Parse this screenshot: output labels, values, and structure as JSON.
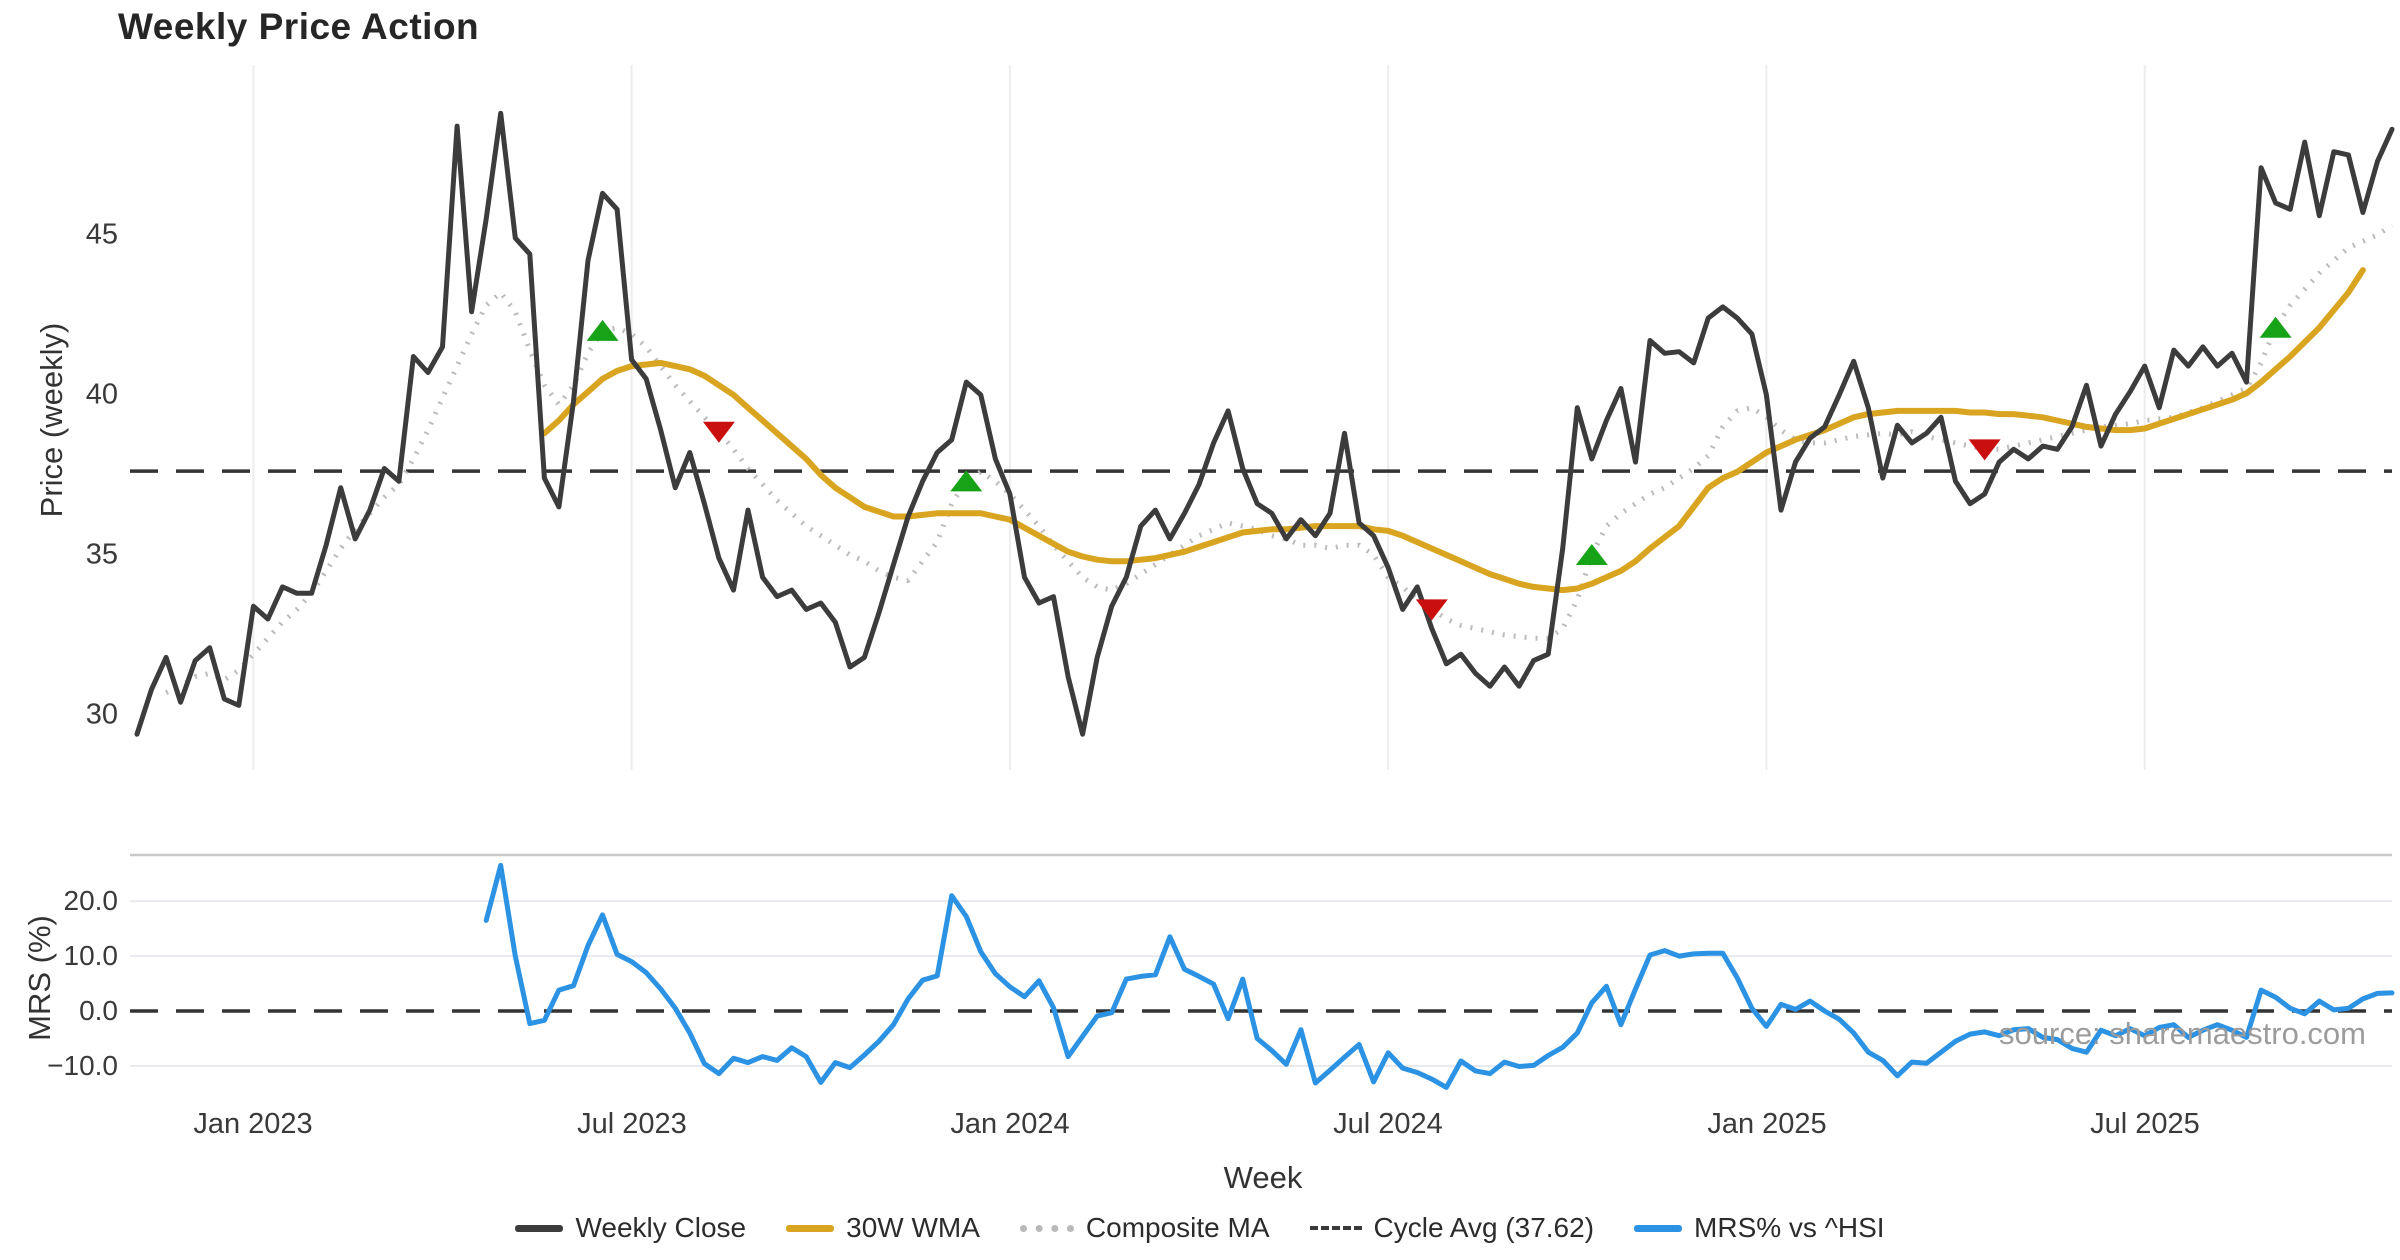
{
  "title": "Weekly Price Action",
  "watermark": "source: sharemaestro.com",
  "axes": {
    "price_axis_label": "Price (weekly)",
    "mrs_axis_label": "MRS (%)",
    "x_axis_label": "Week",
    "price_tick_labels": [
      "45",
      "40",
      "35",
      "30"
    ],
    "mrs_tick_labels": [
      "20.0",
      "10.0",
      "0.0",
      "−10.0"
    ]
  },
  "legend": {
    "items": [
      {
        "label": "Weekly Close"
      },
      {
        "label": "30W WMA"
      },
      {
        "label": "Composite MA"
      },
      {
        "label": "Cycle Avg (37.62)"
      },
      {
        "label": "MRS% vs ^HSI"
      }
    ]
  },
  "chart_data": {
    "type": "line",
    "x_unit": "weeks",
    "x_range_weeks": [
      0,
      155
    ],
    "x_ticks": [
      {
        "week": 8,
        "label": "Jan 2023"
      },
      {
        "week": 34,
        "label": "Jul 2023"
      },
      {
        "week": 60,
        "label": "Jan 2024"
      },
      {
        "week": 86,
        "label": "Jul 2024"
      },
      {
        "week": 112,
        "label": "Jan 2025"
      },
      {
        "week": 138,
        "label": "Jul 2025"
      }
    ],
    "colors": {
      "close": "#3c3c3c",
      "wma": "#d9a521",
      "composite": "#bcbcbc",
      "cycle": "#333333",
      "mrs": "#2b92e4",
      "buy": "#17a317",
      "sell": "#c9100e",
      "grid_v": "#ededed",
      "grid_mrs": "#e9e9f0",
      "mrs_top_border": "#c9c9c9"
    },
    "price_panel": {
      "ylim": [
        28.28,
        50.31
      ],
      "yticks": [
        45,
        40,
        35,
        30
      ],
      "cycle_avg": 37.62,
      "series": [
        {
          "name": "Weekly Close",
          "style": "solid",
          "start_week": 0,
          "values": [
            29.4,
            30.8,
            31.8,
            30.4,
            31.7,
            32.1,
            30.5,
            30.3,
            33.4,
            33.0,
            34.0,
            33.8,
            33.8,
            35.3,
            37.1,
            35.5,
            36.4,
            37.7,
            37.3,
            41.2,
            40.7,
            41.5,
            48.4,
            42.6,
            45.5,
            48.8,
            44.9,
            44.4,
            37.4,
            36.5,
            39.8,
            44.2,
            46.3,
            45.8,
            41.1,
            40.5,
            38.9,
            37.1,
            38.2,
            36.6,
            34.9,
            33.9,
            36.4,
            34.3,
            33.7,
            33.9,
            33.3,
            33.5,
            32.9,
            31.5,
            31.8,
            33.2,
            34.7,
            36.2,
            37.3,
            38.2,
            38.6,
            40.4,
            40.0,
            38.0,
            36.9,
            34.3,
            33.5,
            33.7,
            31.2,
            29.4,
            31.8,
            33.4,
            34.3,
            35.9,
            36.4,
            35.5,
            36.3,
            37.2,
            38.5,
            39.5,
            37.7,
            36.6,
            36.3,
            35.5,
            36.1,
            35.6,
            36.3,
            38.8,
            36.0,
            35.6,
            34.6,
            33.3,
            34.0,
            32.7,
            31.6,
            31.9,
            31.3,
            30.9,
            31.5,
            30.9,
            31.7,
            31.9,
            35.2,
            39.6,
            38.0,
            39.2,
            40.2,
            37.9,
            41.7,
            41.3,
            41.35,
            41.0,
            42.4,
            42.75,
            42.4,
            41.9,
            40.0,
            36.4,
            37.9,
            38.65,
            39.0,
            40.0,
            41.05,
            39.6,
            37.4,
            39.05,
            38.5,
            38.8,
            39.3,
            37.3,
            36.6,
            36.9,
            37.9,
            38.3,
            38.0,
            38.4,
            38.3,
            39.0,
            40.3,
            38.4,
            39.4,
            40.1,
            40.9,
            39.6,
            41.4,
            40.9,
            41.5,
            40.9,
            41.3,
            40.4,
            47.1,
            46.0,
            45.8,
            47.9,
            45.6,
            47.6,
            47.5,
            45.7,
            47.3,
            48.3
          ]
        },
        {
          "name": "30W WMA",
          "style": "solid",
          "start_week": 28,
          "values": [
            38.8,
            39.2,
            39.7,
            40.1,
            40.5,
            40.75,
            40.9,
            40.95,
            41.0,
            40.9,
            40.8,
            40.6,
            40.3,
            40.0,
            39.6,
            39.2,
            38.8,
            38.4,
            38.0,
            37.5,
            37.1,
            36.8,
            36.5,
            36.35,
            36.2,
            36.2,
            36.25,
            36.3,
            36.3,
            36.3,
            36.3,
            36.2,
            36.1,
            35.85,
            35.6,
            35.35,
            35.1,
            34.95,
            34.85,
            34.8,
            34.8,
            34.85,
            34.9,
            35.0,
            35.1,
            35.25,
            35.4,
            35.55,
            35.7,
            35.75,
            35.8,
            35.8,
            35.85,
            35.9,
            35.9,
            35.9,
            35.9,
            35.8,
            35.75,
            35.6,
            35.4,
            35.2,
            35.0,
            34.8,
            34.6,
            34.4,
            34.25,
            34.1,
            34.0,
            33.95,
            33.9,
            33.95,
            34.1,
            34.3,
            34.5,
            34.8,
            35.2,
            35.55,
            35.9,
            36.5,
            37.1,
            37.4,
            37.6,
            37.9,
            38.2,
            38.4,
            38.6,
            38.75,
            38.9,
            39.1,
            39.3,
            39.4,
            39.45,
            39.5,
            39.5,
            39.5,
            39.5,
            39.5,
            39.45,
            39.45,
            39.4,
            39.4,
            39.35,
            39.3,
            39.2,
            39.1,
            39.0,
            38.95,
            38.9,
            38.9,
            38.95,
            39.1,
            39.25,
            39.4,
            39.55,
            39.7,
            39.85,
            40.05,
            40.4,
            40.8,
            41.2,
            41.65,
            42.1,
            42.65,
            43.2,
            43.9
          ]
        },
        {
          "name": "Composite MA",
          "style": "dotted",
          "start_week": 2,
          "values": [
            30.7,
            30.9,
            31.2,
            31.3,
            31.1,
            31.4,
            31.9,
            32.4,
            32.9,
            33.3,
            33.8,
            34.5,
            35.2,
            35.8,
            36.3,
            36.8,
            37.2,
            38.0,
            38.9,
            39.9,
            40.9,
            41.9,
            42.8,
            43.2,
            42.6,
            41.4,
            40.3,
            39.7,
            40.3,
            41.3,
            42.0,
            42.1,
            41.9,
            41.5,
            40.9,
            40.3,
            39.8,
            39.3,
            38.85,
            38.3,
            37.7,
            37.2,
            36.7,
            36.3,
            35.9,
            35.6,
            35.3,
            35.0,
            34.8,
            34.5,
            34.3,
            34.2,
            34.8,
            35.4,
            36.6,
            37.3,
            37.6,
            37.3,
            36.9,
            36.4,
            35.9,
            35.3,
            34.8,
            34.3,
            34.0,
            33.9,
            34.1,
            34.4,
            34.7,
            35.0,
            35.3,
            35.6,
            35.8,
            36.0,
            35.9,
            35.8,
            35.6,
            35.5,
            35.3,
            35.3,
            35.2,
            35.3,
            35.3,
            35.0,
            34.3,
            34.0,
            33.6,
            33.3,
            33.0,
            32.8,
            32.7,
            32.6,
            32.5,
            32.45,
            32.4,
            32.4,
            32.7,
            33.6,
            35.0,
            35.9,
            36.3,
            36.6,
            36.9,
            37.1,
            37.4,
            37.7,
            38.1,
            39.0,
            39.5,
            39.6,
            39.3,
            38.9,
            38.6,
            38.5,
            38.5,
            38.6,
            38.7,
            38.75,
            38.8,
            38.75,
            38.85,
            38.7,
            38.6,
            38.5,
            38.4,
            38.3,
            38.3,
            38.4,
            38.5,
            38.6,
            38.7,
            38.8,
            38.9,
            39.0,
            39.05,
            39.1,
            39.2,
            39.25,
            39.3,
            39.45,
            39.6,
            39.8,
            40.0,
            40.2,
            41.0,
            42.1,
            42.8,
            43.3,
            43.8,
            44.2,
            44.6,
            44.8,
            45.0,
            45.3
          ]
        }
      ],
      "markers": {
        "buy": {
          "shape": "triangle-up",
          "points": [
            {
              "week": 32,
              "value": 42.0
            },
            {
              "week": 57,
              "value": 37.3
            },
            {
              "week": 100,
              "value": 35.0
            },
            {
              "week": 147,
              "value": 42.1
            }
          ]
        },
        "sell": {
          "shape": "triangle-down",
          "points": [
            {
              "week": 40,
              "value": 38.85
            },
            {
              "week": 89,
              "value": 33.3
            },
            {
              "week": 127,
              "value": 38.3
            }
          ]
        }
      }
    },
    "mrs_panel": {
      "ylim": [
        -16.2,
        28.4
      ],
      "yticks": [
        20,
        10,
        0,
        -10
      ],
      "zero_line_dashed": true,
      "series": [
        {
          "name": "MRS% vs ^HSI",
          "style": "solid",
          "start_week": 24,
          "values": [
            16.5,
            26.5,
            10.0,
            -2.3,
            -1.7,
            3.8,
            4.6,
            11.9,
            17.5,
            10.3,
            9.0,
            7.0,
            4.0,
            0.5,
            -4.0,
            -9.6,
            -11.4,
            -8.6,
            -9.4,
            -8.3,
            -9.0,
            -6.7,
            -8.3,
            -13.0,
            -9.4,
            -10.3,
            -8.0,
            -5.5,
            -2.5,
            2.2,
            5.6,
            6.4,
            21.0,
            17.2,
            10.8,
            6.8,
            4.4,
            2.6,
            5.5,
            0.6,
            -8.3,
            -4.6,
            -0.9,
            -0.3,
            5.8,
            6.3,
            6.6,
            13.5,
            7.6,
            6.3,
            4.9,
            -1.4,
            5.8,
            -5.0,
            -7.2,
            -9.7,
            -3.4,
            -13.1,
            -10.8,
            -8.4,
            -6.1,
            -12.9,
            -7.6,
            -10.4,
            -11.2,
            -12.4,
            -13.9,
            -9.1,
            -10.9,
            -11.4,
            -9.3,
            -10.1,
            -9.9,
            -8.1,
            -6.6,
            -4.0,
            1.5,
            4.5,
            -2.5,
            4.0,
            10.2,
            11.0,
            10.0,
            10.4,
            10.5,
            10.5,
            6.0,
            0.5,
            -2.8,
            1.2,
            0.3,
            1.8,
            0.0,
            -1.5,
            -4.0,
            -7.5,
            -9.0,
            -11.8,
            -9.3,
            -9.5,
            -7.5,
            -5.5,
            -4.2,
            -3.8,
            -4.5,
            -3.4,
            -3.2,
            -4.8,
            -5.2,
            -6.8,
            -7.5,
            -3.5,
            -4.5,
            -3.2,
            -4.5,
            -3.0,
            -2.5,
            -4.8,
            -3.5,
            -2.5,
            -3.5,
            -4.8,
            3.8,
            2.5,
            0.5,
            -0.5,
            1.8,
            0.2,
            0.5,
            2.2,
            3.2,
            3.3
          ]
        }
      ]
    }
  }
}
